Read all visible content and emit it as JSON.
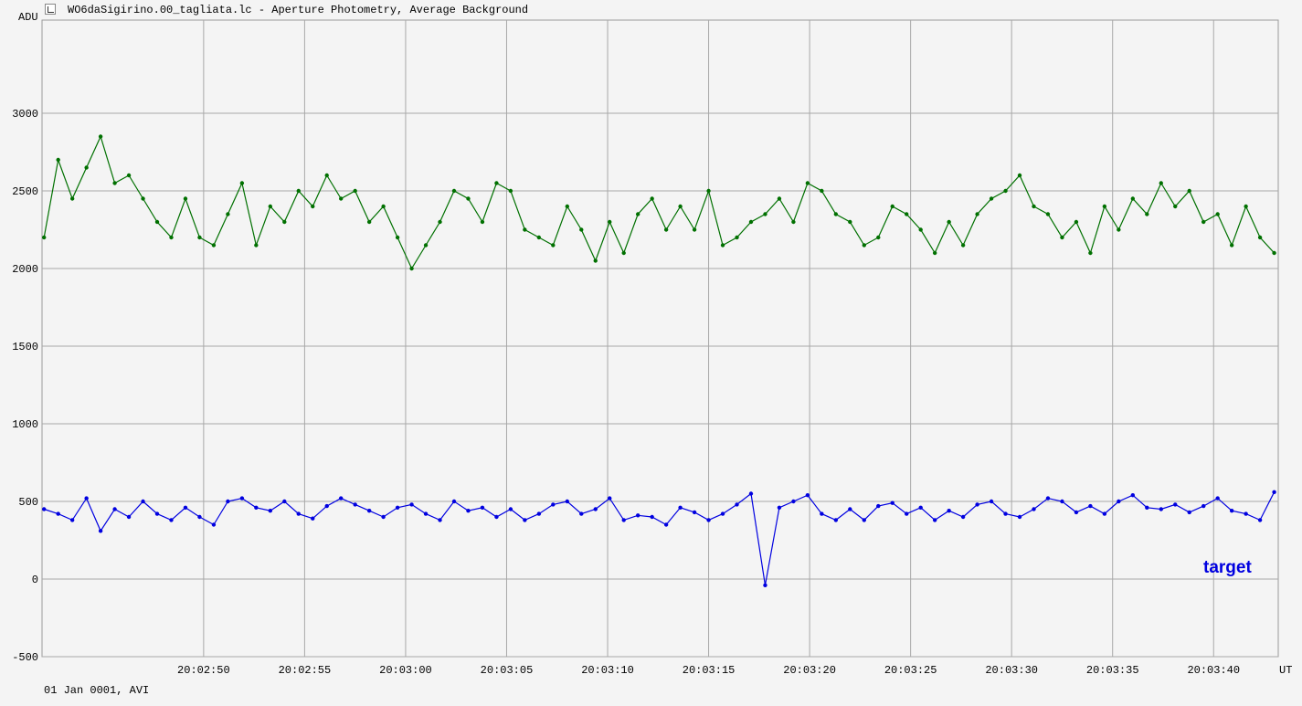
{
  "window": {
    "title": "WO6daSigirino.00_tagliata.lc - Aperture Photometry, Average Background",
    "footer": "01 Jan 0001, AVI"
  },
  "chart_data": {
    "type": "line",
    "ylabel": "ADU",
    "xlabel": "UT",
    "ylim": [
      -500,
      3600
    ],
    "y_ticks": [
      -500,
      0,
      500,
      1000,
      1500,
      2000,
      2500,
      3000
    ],
    "x_range_seconds": [
      42.0,
      103.2
    ],
    "x_tick_labels": [
      "20:02:50",
      "20:02:55",
      "20:03:00",
      "20:03:05",
      "20:03:10",
      "20:03:15",
      "20:03:20",
      "20:03:25",
      "20:03:30",
      "20:03:35",
      "20:03:40"
    ],
    "x_tick_seconds": [
      50,
      55,
      60,
      65,
      70,
      75,
      80,
      85,
      90,
      95,
      100
    ],
    "grid": true,
    "series": [
      {
        "color": "#007000",
        "x": [
          42.1,
          42.8,
          43.5,
          44.2,
          44.9,
          45.6,
          46.3,
          47.0,
          47.7,
          48.4,
          49.1,
          49.8,
          50.5,
          51.2,
          51.9,
          52.6,
          53.3,
          54.0,
          54.7,
          55.4,
          56.1,
          56.8,
          57.5,
          58.2,
          58.9,
          59.6,
          60.3,
          61.0,
          61.7,
          62.4,
          63.1,
          63.8,
          64.5,
          65.2,
          65.9,
          66.6,
          67.3,
          68.0,
          68.7,
          69.4,
          70.1,
          70.8,
          71.5,
          72.2,
          72.9,
          73.6,
          74.3,
          75.0,
          75.7,
          76.4,
          77.1,
          77.8,
          78.5,
          79.2,
          79.9,
          80.6,
          81.3,
          82.0,
          82.7,
          83.4,
          84.1,
          84.8,
          85.5,
          86.2,
          86.9,
          87.6,
          88.3,
          89.0,
          89.7,
          90.4,
          91.1,
          91.8,
          92.5,
          93.2,
          93.9,
          94.6,
          95.3,
          96.0,
          96.7,
          97.4,
          98.1,
          98.8,
          99.5,
          100.2,
          100.9,
          101.6,
          102.3,
          103.0
        ],
        "values": [
          2200,
          2700,
          2450,
          2650,
          2850,
          2550,
          2600,
          2450,
          2300,
          2200,
          2450,
          2200,
          2150,
          2350,
          2550,
          2150,
          2400,
          2300,
          2500,
          2400,
          2600,
          2450,
          2500,
          2300,
          2400,
          2200,
          2000,
          2150,
          2300,
          2500,
          2450,
          2300,
          2550,
          2500,
          2250,
          2200,
          2150,
          2400,
          2250,
          2050,
          2300,
          2100,
          2350,
          2450,
          2250,
          2400,
          2250,
          2500,
          2150,
          2200,
          2300,
          2350,
          2450,
          2300,
          2550,
          2500,
          2350,
          2300,
          2150,
          2200,
          2400,
          2350,
          2250,
          2100,
          2300,
          2150,
          2350,
          2450,
          2500,
          2600,
          2400,
          2350,
          2200,
          2300,
          2100,
          2400,
          2250,
          2450,
          2350,
          2550,
          2400,
          2500,
          2300,
          2350,
          2150,
          2400,
          2200,
          2100
        ]
      },
      {
        "name": "target",
        "color": "#0000e0",
        "x": [
          42.1,
          42.8,
          43.5,
          44.2,
          44.9,
          45.6,
          46.3,
          47.0,
          47.7,
          48.4,
          49.1,
          49.8,
          50.5,
          51.2,
          51.9,
          52.6,
          53.3,
          54.0,
          54.7,
          55.4,
          56.1,
          56.8,
          57.5,
          58.2,
          58.9,
          59.6,
          60.3,
          61.0,
          61.7,
          62.4,
          63.1,
          63.8,
          64.5,
          65.2,
          65.9,
          66.6,
          67.3,
          68.0,
          68.7,
          69.4,
          70.1,
          70.8,
          71.5,
          72.2,
          72.9,
          73.6,
          74.3,
          75.0,
          75.7,
          76.4,
          77.1,
          77.8,
          78.5,
          79.2,
          79.9,
          80.6,
          81.3,
          82.0,
          82.7,
          83.4,
          84.1,
          84.8,
          85.5,
          86.2,
          86.9,
          87.6,
          88.3,
          89.0,
          89.7,
          90.4,
          91.1,
          91.8,
          92.5,
          93.2,
          93.9,
          94.6,
          95.3,
          96.0,
          96.7,
          97.4,
          98.1,
          98.8,
          99.5,
          100.2,
          100.9,
          101.6,
          102.3,
          103.0
        ],
        "values": [
          450,
          420,
          380,
          520,
          310,
          450,
          400,
          500,
          420,
          380,
          460,
          400,
          350,
          500,
          520,
          460,
          440,
          500,
          420,
          390,
          470,
          520,
          480,
          440,
          400,
          460,
          480,
          420,
          380,
          500,
          440,
          460,
          400,
          450,
          380,
          420,
          480,
          500,
          420,
          450,
          520,
          380,
          410,
          400,
          350,
          460,
          430,
          380,
          420,
          480,
          550,
          -40,
          460,
          500,
          540,
          420,
          380,
          450,
          380,
          470,
          490,
          420,
          460,
          380,
          440,
          400,
          480,
          500,
          420,
          400,
          450,
          520,
          500,
          430,
          470,
          420,
          500,
          540,
          460,
          450,
          480,
          430,
          470,
          520,
          440,
          420,
          380,
          560
        ]
      }
    ]
  }
}
